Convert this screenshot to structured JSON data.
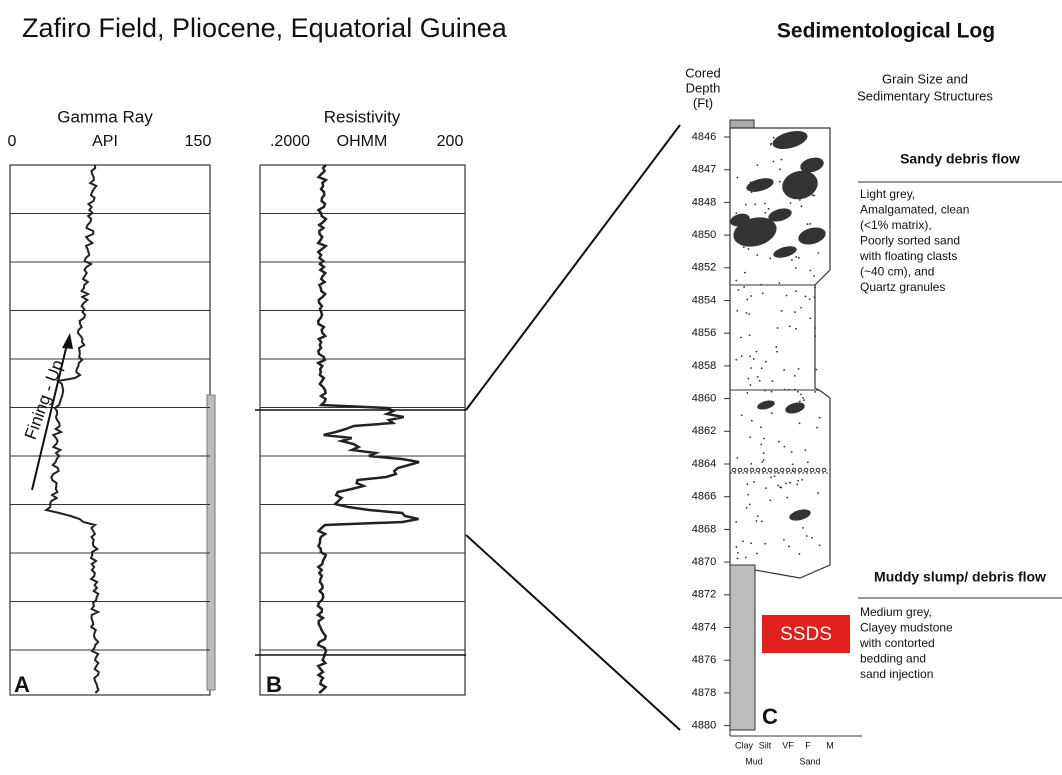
{
  "title": "Zafiro Field, Pliocene, Equatorial Guinea",
  "gamma": {
    "title": "Gamma Ray",
    "unit": "API",
    "min": "0",
    "max": "150",
    "label": "A",
    "annotation": "Fining - Up"
  },
  "resistivity": {
    "title": "Resistivity",
    "unit": "OHMM",
    "min": ".2000",
    "max": "200",
    "label": "B"
  },
  "log": {
    "title": "Sedimentological Log",
    "depth_header": [
      "Cored",
      "Depth",
      "(Ft)"
    ],
    "grain_header": [
      "Grain Size and",
      "Sedimentary Structures"
    ],
    "depths": [
      "4846",
      "4847",
      "4848",
      "4850",
      "4852",
      "4854",
      "4856",
      "4858",
      "4860",
      "4862",
      "4864",
      "4866",
      "4868",
      "4870",
      "4872",
      "4874",
      "4876",
      "4878",
      "4880"
    ],
    "label": "C",
    "ssds": "SSDS",
    "facies": [
      {
        "name": "Sandy debris flow",
        "description": [
          "Light grey,",
          "Amalgamated, clean",
          "(<1% matrix),",
          "Poorly sorted sand",
          "with floating clasts",
          "(~40 cm), and",
          "Quartz granules"
        ]
      },
      {
        "name": "Muddy slump/ debris flow",
        "description": [
          "Medium grey,",
          "Clayey mudstone",
          "with contorted",
          "bedding and",
          "sand injection"
        ]
      }
    ],
    "grain_scale": [
      "Clay",
      "Silt",
      "VF",
      "F",
      "M"
    ],
    "grain_groups": [
      "Mud",
      "Sand"
    ]
  }
}
